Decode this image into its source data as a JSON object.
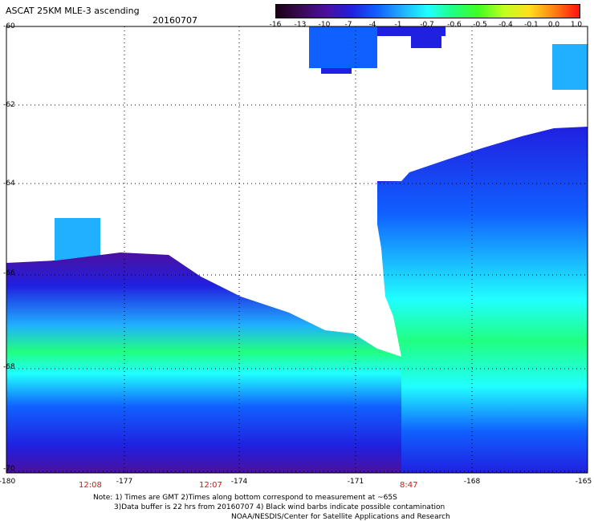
{
  "header": {
    "title": "ASCAT 25KM MLE-3 ascending",
    "date": "20160707"
  },
  "colorbar": {
    "ticks": [
      "-16",
      "-13",
      "-10",
      "-7",
      "-4",
      "-1",
      "-0.7",
      "-0.6",
      "-0.5",
      "-0.4",
      "-0.1",
      "0.0",
      "1.0"
    ],
    "colors": [
      "#1a0016",
      "#3a0a55",
      "#4b10a0",
      "#2020e0",
      "#1060ff",
      "#20b0ff",
      "#20ffff",
      "#20ff80",
      "#40ff20",
      "#c0ff20",
      "#ffe020",
      "#ff8010",
      "#ff1010"
    ]
  },
  "axes": {
    "lat_labels": [
      "-60",
      "-62",
      "-64",
      "-66",
      "-68",
      "-70"
    ],
    "lon_labels": [
      "-180",
      "-177",
      "-174",
      "-171",
      "-168",
      "-165"
    ],
    "times": [
      "12:08",
      "12:07",
      "8:47"
    ]
  },
  "notes": {
    "line1": "Note: 1) Times are GMT 2)Times along bottom correspond to measurement at ~65S",
    "line2": "3)Data buffer is 22 hrs from 20160707 4) Black wind barbs indicate possible contamination",
    "line3": "NOAA/NESDIS/Center for Satellite Applications and Research"
  },
  "legend_colors": {
    "purple": "#4b10a0",
    "blue": "#2020e0",
    "cyan": "#20ffff",
    "green": "#20ff80",
    "red": "#ff1010"
  }
}
